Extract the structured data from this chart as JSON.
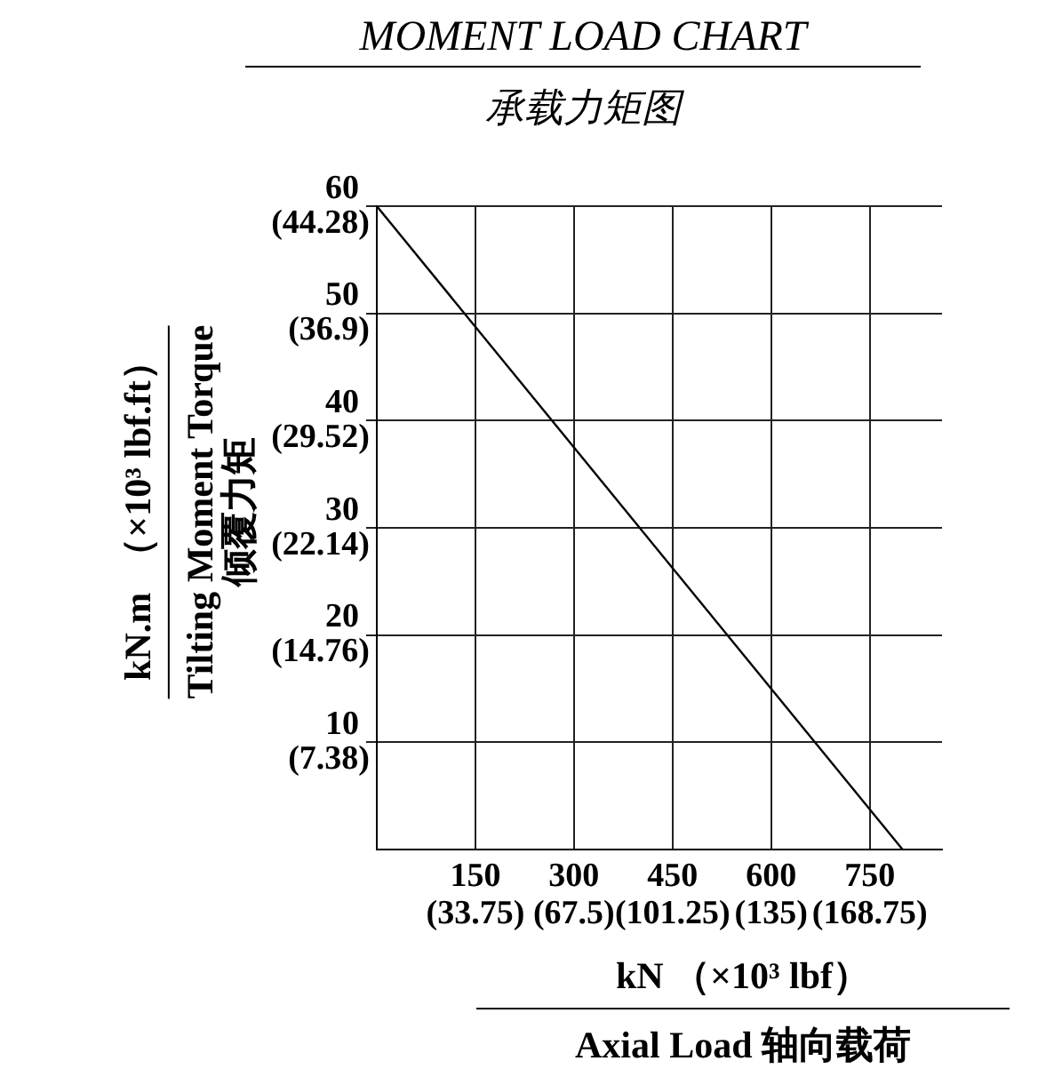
{
  "chart_data": {
    "type": "line",
    "title": "MOMENT LOAD CHART",
    "subtitle": "承载力矩图",
    "xlabel": "kN （×10³ lbf）\nAxial Load  轴向载荷",
    "ylabel": "kN.m\nTilting Moment Torque\n倾覆力矩",
    "y2label": "（×10³ lbf.ft）",
    "series": [
      {
        "color": "#000000",
        "x": [
          0,
          800
        ],
        "values": [
          60,
          0
        ]
      }
    ],
    "xlim": [
      0,
      860
    ],
    "xticks": [
      150,
      300,
      450,
      600,
      750
    ],
    "x2lim": [
      0,
      193.5
    ],
    "x2ticks": [
      {
        "value": 33.75,
        "label": "(33.75)"
      },
      {
        "value": 67.5,
        "label": "(67.5)"
      },
      {
        "value": 101.25,
        "label": "(101.25)"
      },
      {
        "value": 135,
        "label": "(135)"
      },
      {
        "value": 168.75,
        "label": "(168.75)"
      }
    ],
    "ylim": [
      0,
      60
    ],
    "yticks": [
      10,
      20,
      30,
      40,
      50,
      60
    ],
    "y2lim": [
      0,
      44.28
    ],
    "y2ticks": [
      {
        "value": 7.38,
        "label": "(7.38)"
      },
      {
        "value": 14.76,
        "label": "(14.76)"
      },
      {
        "value": 22.14,
        "label": "(22.14)"
      },
      {
        "value": 29.52,
        "label": "(29.52)"
      },
      {
        "value": 36.9,
        "label": "(36.9)"
      },
      {
        "value": 44.28,
        "label": "(44.28)"
      }
    ],
    "grid": true,
    "legend": false,
    "marker": "none",
    "line_style": "solid"
  }
}
